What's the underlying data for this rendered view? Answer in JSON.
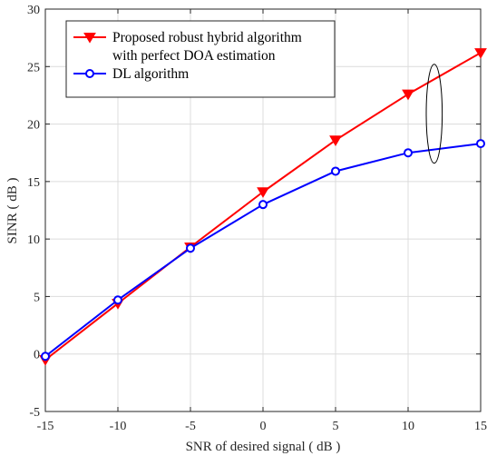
{
  "chart_data": {
    "type": "line",
    "title": "",
    "xlabel": "SNR of desired signal ( dB )",
    "ylabel": "SINR ( dB )",
    "xlim": [
      -15,
      15
    ],
    "ylim": [
      -5,
      30
    ],
    "xticks": [
      -15,
      -10,
      -5,
      0,
      5,
      10,
      15
    ],
    "yticks": [
      -5,
      0,
      5,
      10,
      15,
      20,
      25,
      30
    ],
    "grid": true,
    "legend_position": "top-left",
    "x": [
      -15,
      -10,
      -5,
      0,
      5,
      10,
      15
    ],
    "series": [
      {
        "name": "Proposed robust hybrid algorithm with perfect DOA estimation",
        "legend_lines": [
          "Proposed robust hybrid algorithm",
          "with perfect DOA estimation"
        ],
        "color": "#ff0000",
        "marker": "triangle-down",
        "values": [
          -0.5,
          4.4,
          9.3,
          14.1,
          18.6,
          22.6,
          26.2
        ]
      },
      {
        "name": "DL algorithm",
        "legend_lines": [
          "DL algorithm"
        ],
        "color": "#0000ff",
        "marker": "circle",
        "values": [
          -0.2,
          4.7,
          9.2,
          13.0,
          15.9,
          17.5,
          18.3
        ]
      }
    ],
    "annotations": [
      {
        "type": "ellipse",
        "x": 11.8,
        "y": 20.9,
        "rx": 0.55,
        "ry": 4.3
      }
    ]
  }
}
